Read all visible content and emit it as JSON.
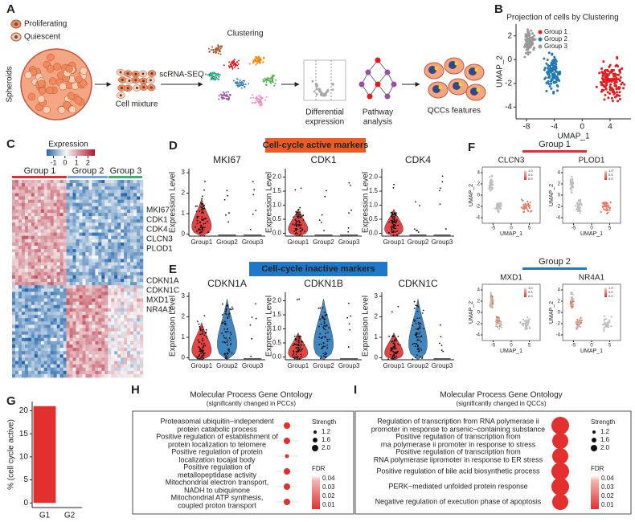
{
  "A": {
    "label": "A",
    "legend": [
      "Proliferating",
      "Quiescent"
    ],
    "spheroids": "Spheroids",
    "mixture": "Cell mixture",
    "method": "scRNA-SEQ",
    "clustering": "Clustering",
    "steps": [
      [
        "Differential",
        "expression"
      ],
      [
        "Pathway",
        "analysis"
      ]
    ],
    "result": "QCCs features"
  },
  "B": {
    "label": "B",
    "title": "Projection of cells by Clustering",
    "legend": [
      "Group 1",
      "Group 2",
      "Group 3"
    ],
    "colors": [
      "#e41a1c",
      "#1f78b4",
      "#999999"
    ],
    "xlabel": "UMAP_1",
    "ylabel": "UMAP_2",
    "xlim": [
      -9.5,
      7
    ],
    "ylim": [
      -5,
      3
    ],
    "xticks": [
      -8,
      -4,
      0,
      4
    ],
    "yticks": [
      -4,
      -2,
      0,
      2
    ]
  },
  "C": {
    "label": "C",
    "colorbar_title": "Expression",
    "clim": [
      -1.6,
      2.6
    ],
    "colorbar_ticks": [
      -1,
      0,
      1,
      2
    ],
    "groups": [
      "Group 1",
      "Group 2",
      "Group 3"
    ],
    "genes_top": [
      "MKI67",
      "CDK1",
      "CDK4",
      "CLCN3",
      "PLOD1"
    ],
    "genes_bottom": [
      "CDKN1A",
      "CDKN1C",
      "MXD1",
      "NR4A1"
    ]
  },
  "D": {
    "label": "D",
    "banner": "Cell-cycle active markers",
    "ylabel": "Expression Level",
    "groups": [
      "Group1",
      "Group2",
      "Group3"
    ],
    "plots": [
      {
        "gene": "MKI67",
        "ylim": [
          -0.1,
          3.2
        ],
        "yticks": [
          0,
          1,
          2,
          3
        ]
      },
      {
        "gene": "CDK1",
        "ylim": [
          -0.1,
          2.3
        ],
        "yticks": [
          {
            "value": 0,
            "label": "0.0"
          },
          {
            "value": 0.5,
            "label": "0.5"
          },
          {
            "value": 1,
            "label": "1.0"
          },
          {
            "value": 1.5,
            "label": "1.5"
          },
          {
            "value": 2,
            "label": "2.0"
          }
        ]
      },
      {
        "gene": "CDK4",
        "ylim": [
          -0.1,
          2.3
        ],
        "yticks": [
          {
            "value": 0,
            "label": "0.0"
          },
          {
            "value": 0.5,
            "label": "0.5"
          },
          {
            "value": 1,
            "label": "1.0"
          },
          {
            "value": 1.5,
            "label": "1.5"
          },
          {
            "value": 2,
            "label": "2.0"
          }
        ]
      }
    ]
  },
  "E": {
    "label": "E",
    "banner": "Cell-cycle inactive markers",
    "ylabel": "Expression Level",
    "groups": [
      "Group1",
      "Group2",
      "Group3"
    ],
    "plots": [
      {
        "gene": "CDKN1A",
        "ylim": [
          -0.1,
          3.2
        ],
        "yticks": [
          0,
          1,
          2,
          3
        ]
      },
      {
        "gene": "CDKN1B",
        "ylim": [
          -0.1,
          2.3
        ],
        "yticks": [
          {
            "value": 0,
            "label": "0.0"
          },
          {
            "value": 0.5,
            "label": "0.5"
          },
          {
            "value": 1,
            "label": "1.0"
          },
          {
            "value": 1.5,
            "label": "1.5"
          },
          {
            "value": 2,
            "label": "2.0"
          }
        ]
      },
      {
        "gene": "CDKN1C",
        "ylim": [
          -0.1,
          3.2
        ],
        "yticks": [
          0,
          1,
          2,
          3
        ]
      }
    ]
  },
  "F": {
    "label": "F",
    "groups": [
      {
        "name": "Group 1",
        "genes": [
          "CLCN3",
          "PLOD1"
        ]
      },
      {
        "name": "Group 2",
        "genes": [
          "MXD1",
          "NR4A1"
        ]
      }
    ],
    "xlabel": "UMAP_1",
    "ylabel": "UMAP_2",
    "xlim": [
      -8,
      8
    ],
    "ylim": [
      -5,
      5
    ],
    "xticks": [
      -5,
      0,
      5
    ],
    "yticks": [
      -4,
      -2,
      0,
      2,
      4
    ],
    "legend_ticks": [
      "1.0",
      "0.5",
      "0.0"
    ]
  },
  "G": {
    "label": "G",
    "ylabel": "% (cell cycle active)",
    "categories": [
      "G1",
      "G2"
    ],
    "values": [
      21,
      0
    ],
    "ylim": [
      -1,
      22
    ],
    "yticks": [
      0,
      5,
      10,
      15,
      20
    ],
    "color": "#e3302f"
  },
  "H": {
    "label": "H",
    "title": "Molecular Process Gene Ontology",
    "subtitle": "(significantly changed in PCCs)",
    "terms": [
      [
        "Proteasomal ubiquitin−independent",
        "protein catabolic process"
      ],
      [
        "Positive regulation of establishment of",
        "protein localization to telomere"
      ],
      [
        "Positive regulation of protein",
        "localization tocajal body"
      ],
      [
        "Positive regulation of",
        "metallopeptidase activity"
      ],
      [
        "Mitochondrial electron transport,",
        "NADH to ubiquinone"
      ],
      [
        "Mitochondrial ATP synthesis,",
        "coupled proton transport"
      ]
    ],
    "strength_title": "Strength",
    "strength_ticks": [
      "1.2",
      "1.6",
      "2.0"
    ],
    "fdr_title": "FDR",
    "fdr_ticks": [
      "0.04",
      "0.03",
      "0.02",
      "0.01"
    ]
  },
  "I": {
    "label": "I",
    "title": "Molecular Process Gene Ontology",
    "subtitle": "(significantly changed in QCCs)",
    "terms": [
      [
        "Regulation of transcription from RNA polymerase ii",
        "promoter in response to arsenic−containing substance"
      ],
      [
        "Positive regulation of transcription from",
        "rna polymerase ii promoter in response to stress"
      ],
      [
        "Positive regulation of transcription from",
        "RNA polymerase iipromoter in response to ER stress"
      ],
      [
        "Positive regulation of bile acid biosynthetic process"
      ],
      [
        "PERK−mediated unfolded protein response"
      ],
      [
        "Negative regulation of execution phase of apoptosis"
      ]
    ],
    "strength_title": "Strength",
    "strength_ticks": [
      "1.2",
      "1.6",
      "2.0"
    ],
    "fdr_title": "FDR",
    "fdr_ticks": [
      "0.04",
      "0.03",
      "0.02",
      "0.01"
    ]
  }
}
